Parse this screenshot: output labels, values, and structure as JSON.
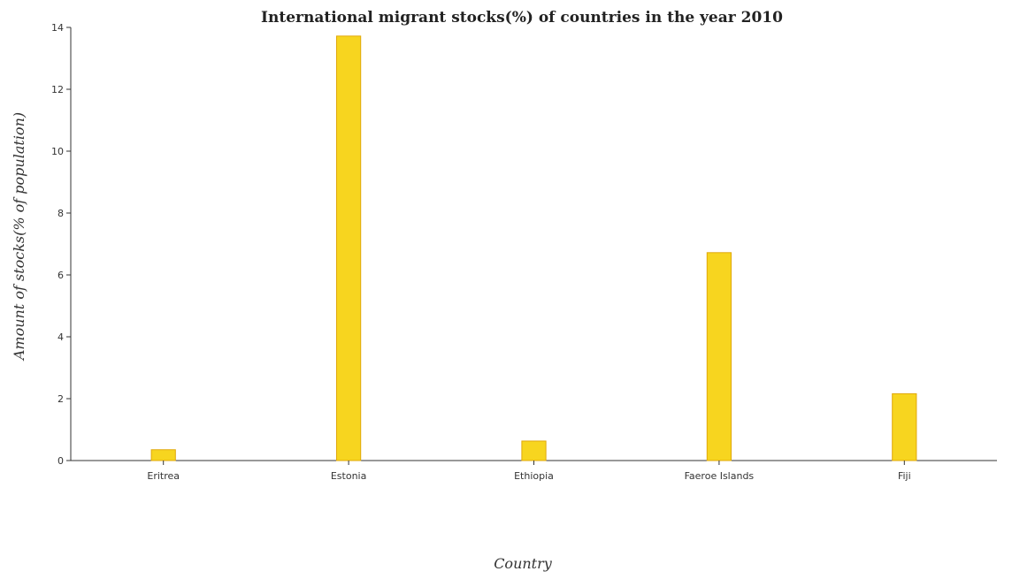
{
  "chart_data": {
    "type": "bar",
    "title": "International migrant stocks(%) of countries in the year 2010",
    "xlabel": "Country",
    "ylabel": "Amount of stocks(% of population)",
    "categories": [
      "Eritrea",
      "Estonia",
      "Ethiopia",
      "Faeroe Islands",
      "Fiji"
    ],
    "values": [
      0.35,
      13.72,
      0.63,
      6.72,
      2.16
    ],
    "ylim": [
      0,
      14
    ],
    "yticks": [
      "0",
      "2",
      "4",
      "6",
      "8",
      "10",
      "12",
      "14"
    ],
    "bar_color": "#f7d51f",
    "grid": false
  }
}
